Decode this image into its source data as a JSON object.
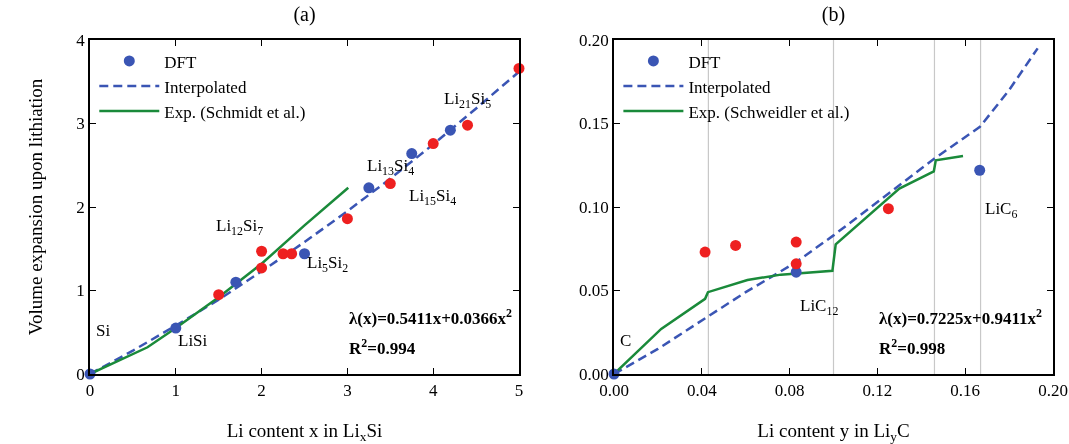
{
  "chart_data": [
    {
      "type": "scatter",
      "title": "(a)",
      "xlabel": "Li content x in Li$_{x}$Si",
      "ylabel": "Volume expansion upon lithiation",
      "xlim": [
        0,
        5
      ],
      "xticks": [
        0,
        1,
        2,
        3,
        4,
        5
      ],
      "ylim": [
        0,
        4
      ],
      "yticks": [
        0,
        1,
        2,
        3,
        4
      ],
      "grid": false,
      "legend": "top left",
      "series": [
        {
          "name": "DFT",
          "marker": "circle",
          "color": "#3a55b4",
          "x": [
            0,
            1,
            1.7,
            2.5,
            3.25,
            3.75,
            4.2
          ],
          "values": [
            0,
            0.55,
            1.1,
            1.44,
            2.23,
            2.64,
            2.92
          ]
        },
        {
          "marker": "circle",
          "color": "#ee2020",
          "x": [
            1.5,
            2,
            2,
            2.25,
            2.35,
            3,
            3.5,
            4,
            4.4,
            5
          ],
          "values": [
            0.95,
            1.47,
            1.27,
            1.44,
            1.44,
            1.86,
            2.28,
            2.76,
            2.98,
            3.66
          ]
        },
        {
          "name": "Interpolated",
          "type": "line",
          "line_style": "dashed",
          "marker": "none",
          "color": "#3a55b4",
          "x": [
            0,
            0.5,
            1,
            1.5,
            2,
            2.5,
            3,
            3.5,
            4,
            4.5,
            5
          ],
          "values": [
            0,
            0.28,
            0.58,
            0.89,
            1.23,
            1.58,
            1.95,
            2.34,
            2.75,
            3.18,
            3.62
          ]
        },
        {
          "name": "Exp. (Schmidt et al.)",
          "type": "line",
          "line_style": "solid",
          "marker": "none",
          "color": "#1a8a3a",
          "x": [
            0,
            0.67,
            1,
            1.5,
            2,
            2.5,
            3.01
          ],
          "values": [
            0,
            0.32,
            0.55,
            0.92,
            1.32,
            1.78,
            2.23
          ]
        }
      ],
      "annotations": [
        "Si",
        "LiSi",
        "Li$_{12}$Si$_{7}$",
        "Li$_{5}$Si$_{2}$",
        "Li$_{13}$Si$_{4}$",
        "Li$_{15}$Si$_{4}$",
        "Li$_{21}$Si$_{5}$",
        "λ(x)=0.5411x+0.0366x$^{2}$",
        "R$^{2}$=0.994"
      ]
    },
    {
      "type": "scatter",
      "title": "(b)",
      "xlabel": "Li content y in Li$_{y}$C",
      "xlim": [
        0,
        0.2
      ],
      "xticks": [
        {
          "value": 0,
          "label": "0.00"
        },
        0.04,
        0.08,
        0.12,
        0.16,
        {
          "value": 0.2,
          "label": "0.20"
        }
      ],
      "ylim": [
        0,
        0.2
      ],
      "yticks": [
        {
          "value": 0,
          "label": "0.00"
        },
        0.05,
        {
          "value": 0.1,
          "label": "0.10"
        },
        0.15,
        {
          "value": 0.2,
          "label": "0.20"
        }
      ],
      "grid": false,
      "legend": "top left",
      "ref_lines": [
        {
          "axis": "x",
          "value": 0.043,
          "color": "#c8c8c8"
        },
        {
          "axis": "x",
          "value": 0.1,
          "color": "#c8c8c8"
        },
        {
          "axis": "x",
          "value": 0.146,
          "color": "#c8c8c8"
        },
        {
          "axis": "x",
          "value": 0.167,
          "color": "#c8c8c8"
        }
      ],
      "series": [
        {
          "name": "DFT",
          "marker": "circle",
          "color": "#3a55b4",
          "x": [
            0,
            0.083,
            0.1666
          ],
          "values": [
            0,
            0.061,
            0.122
          ]
        },
        {
          "marker": "circle",
          "color": "#ee2020",
          "x": [
            0.0415,
            0.0554,
            0.083,
            0.083,
            0.125
          ],
          "values": [
            0.073,
            0.077,
            0.079,
            0.066,
            0.099
          ]
        },
        {
          "name": "Interpolated",
          "type": "line",
          "line_style": "dashed",
          "marker": "none",
          "color": "#3a55b4",
          "x": [
            0,
            0.02,
            0.0417,
            0.06,
            0.083,
            0.1,
            0.12,
            0.146,
            0.1667,
            0.18,
            0.193
          ],
          "values": [
            0,
            0.015,
            0.0335,
            0.049,
            0.067,
            0.083,
            0.103,
            0.129,
            0.148,
            0.17,
            0.195
          ]
        },
        {
          "name": "Exp. (Schweidler et al.)",
          "type": "line",
          "line_style": "solid",
          "marker": "none",
          "color": "#1a8a3a",
          "x": [
            0,
            0.0215,
            0.0415,
            0.0428,
            0.0608,
            0.076,
            0.0995,
            0.101,
            0.13,
            0.1457,
            0.1466,
            0.159
          ],
          "values": [
            0,
            0.027,
            0.045,
            0.049,
            0.0563,
            0.0595,
            0.0618,
            0.0776,
            0.111,
            0.1213,
            0.128,
            0.1305
          ]
        }
      ],
      "annotations": [
        "C",
        "LiC$_{12}$",
        "LiC$_{6}$",
        "λ(x)=0.7225x+0.9411x$^{2}$",
        "R$^{2}$=0.998"
      ]
    }
  ]
}
